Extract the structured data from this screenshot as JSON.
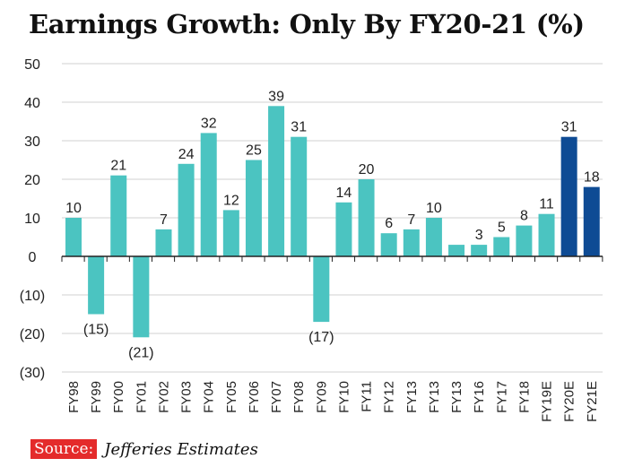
{
  "chart_data": {
    "type": "bar",
    "title": "Earnings Growth: Only By FY20-21 (%)",
    "categories": [
      "FY98",
      "FY99",
      "FY00",
      "FY01",
      "FY02",
      "FY03",
      "FY04",
      "FY05",
      "FY06",
      "FY07",
      "FY08",
      "FY09",
      "FY10",
      "FY11",
      "FY12",
      "FY13",
      "FY13",
      "FY13",
      "FY16",
      "FY17",
      "FY18",
      "FY19E",
      "FY20E",
      "FY21E"
    ],
    "values": [
      10,
      -15,
      21,
      -21,
      7,
      24,
      32,
      12,
      25,
      39,
      31,
      -17,
      14,
      20,
      6,
      7,
      10,
      3,
      3,
      5,
      8,
      11,
      31,
      18
    ],
    "data_labels": [
      "10",
      "(15)",
      "21",
      "(21)",
      "7",
      "24",
      "32",
      "12",
      "25",
      "39",
      "31",
      "(17)",
      "14",
      "20",
      "6",
      "7",
      "10",
      null,
      "3",
      "5",
      "8",
      "11",
      "31",
      "18"
    ],
    "estimate_categories": [
      "FY20E",
      "FY21E"
    ],
    "ylim": [
      -30,
      50
    ],
    "yticks": [
      50,
      40,
      30,
      20,
      10,
      0,
      -10,
      -20,
      -30
    ],
    "ytick_labels": [
      "50",
      "40",
      "30",
      "20",
      "10",
      "0",
      "(10)",
      "(20)",
      "(30)"
    ],
    "grid": true,
    "colors": {
      "actual": "#4bc4c1",
      "estimate": "#0e4b94",
      "grid": "#d0d0d0"
    }
  },
  "source": {
    "label": "Source:",
    "text": "Jefferies Estimates"
  }
}
